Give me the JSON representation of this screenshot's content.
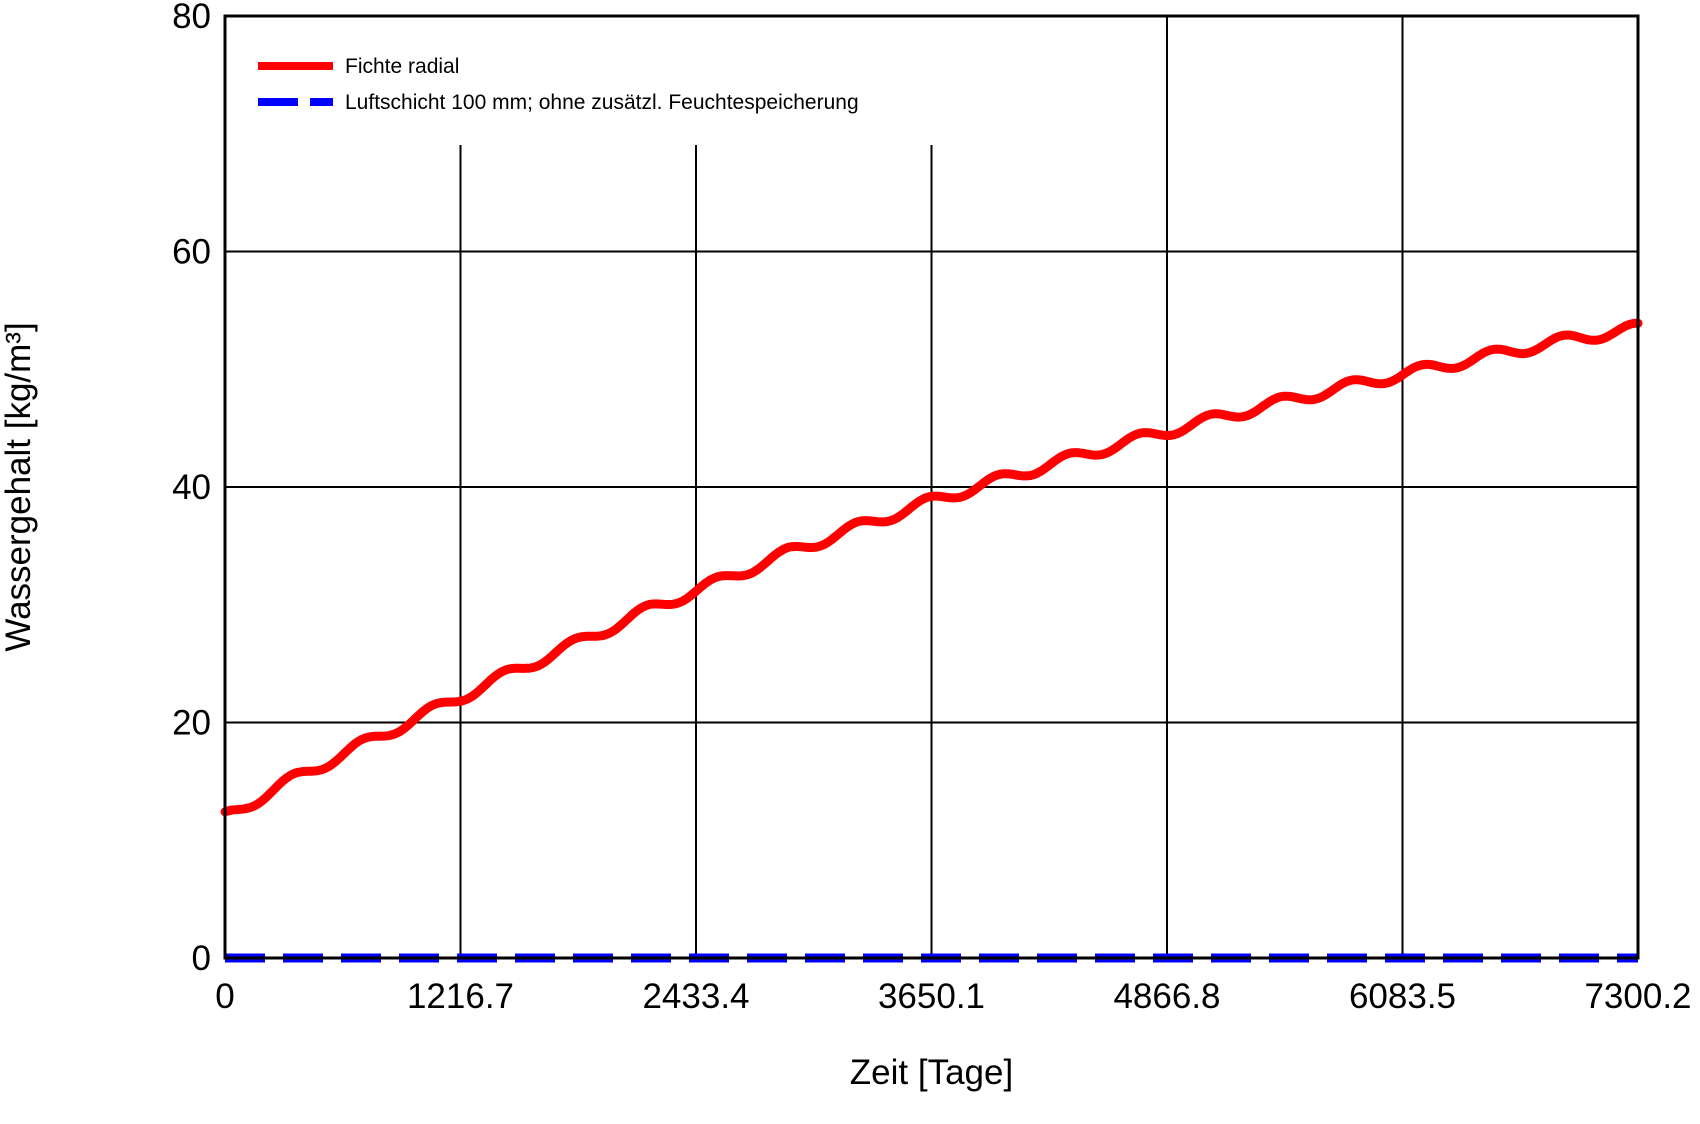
{
  "chart_data": {
    "type": "line",
    "title": "",
    "xlabel": "Zeit [Tage]",
    "ylabel": "Wassergehalt [kg/m³]",
    "xlim": [
      0,
      7300.2
    ],
    "ylim": [
      0,
      80
    ],
    "x_ticks": [
      0,
      1216.7,
      2433.4,
      3650.1,
      4866.8,
      6083.5,
      7300.2
    ],
    "x_tick_labels": [
      "0",
      "1216.7",
      "2433.4",
      "3650.1",
      "4866.8",
      "6083.5",
      "7300.2"
    ],
    "y_ticks": [
      0,
      20,
      40,
      60,
      80
    ],
    "y_tick_labels": [
      "0",
      "20",
      "40",
      "60",
      "80"
    ],
    "grid": true,
    "legend_position": "top-left",
    "series": [
      {
        "name": "Fichte radial",
        "color": "#ff0000",
        "style": "solid",
        "x": [
          0,
          365,
          730,
          1095,
          1460,
          1825,
          2190,
          2555,
          2920,
          3285,
          3650,
          4015,
          4380,
          4745,
          5110,
          5475,
          5840,
          6205,
          6570,
          6935,
          7300
        ],
        "y": [
          12.0,
          15.3,
          18.3,
          21.2,
          24.1,
          26.8,
          29.6,
          32.0,
          34.5,
          36.7,
          38.8,
          40.7,
          42.5,
          44.2,
          45.8,
          47.3,
          48.7,
          50.0,
          51.3,
          52.5,
          53.5
        ]
      },
      {
        "name": "Luftschicht 100 mm; ohne zusätzl. Feuchtespeicherung",
        "color": "#0000ff",
        "style": "dashed",
        "x": [
          0,
          7300.2
        ],
        "y": [
          0,
          0
        ]
      }
    ]
  }
}
